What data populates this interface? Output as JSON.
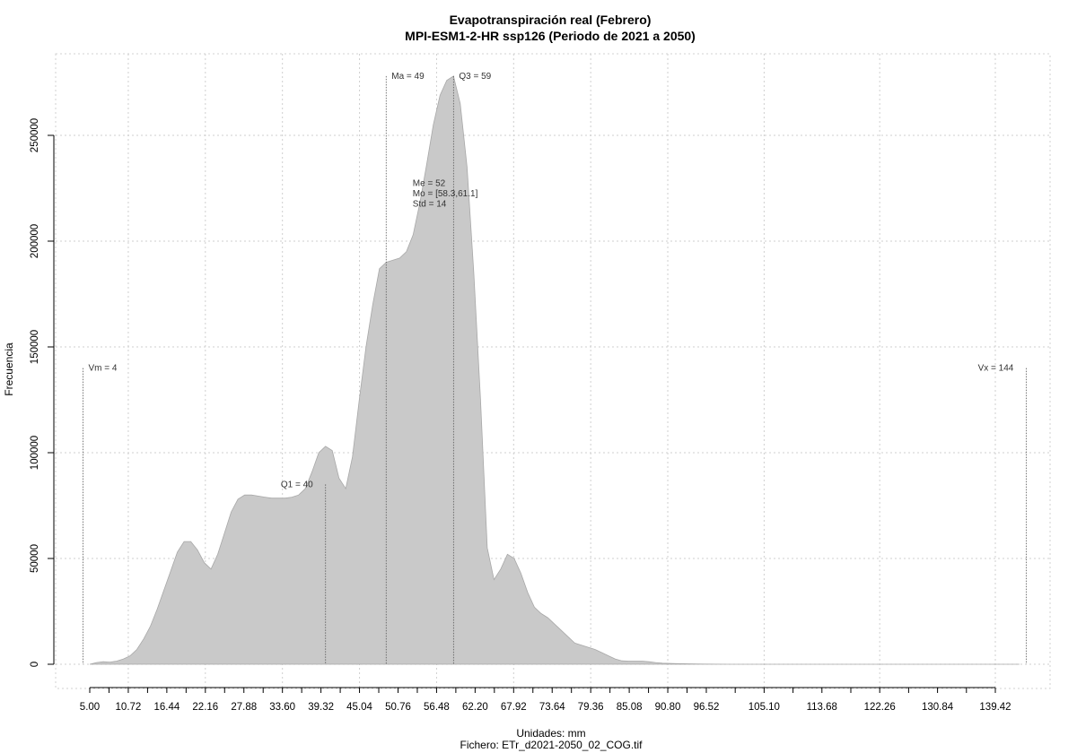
{
  "chart_data": {
    "type": "area",
    "title": "Evapotranspiración real (Febrero)",
    "subtitle": "MPI-ESM1-2-HR ssp126 (Periodo de 2021 a 2050)",
    "xlabel": "Unidades: mm",
    "caption": "Fichero: ETr_d2021-2050_02_COG.tif",
    "ylabel": "Frecuencia",
    "xlim": [
      0,
      145
    ],
    "ylim": [
      0,
      280000
    ],
    "grid": true,
    "x_ticks": [
      5.0,
      10.72,
      16.44,
      22.16,
      27.88,
      33.6,
      39.32,
      45.04,
      50.76,
      56.48,
      62.2,
      67.92,
      73.64,
      79.36,
      85.08,
      90.8,
      96.52,
      105.1,
      113.68,
      122.26,
      130.84,
      139.42
    ],
    "x_tick_labels": [
      "5.00",
      "10.72",
      "16.44",
      "22.16",
      "27.88",
      "33.60",
      "39.32",
      "45.04",
      "50.76",
      "56.48",
      "62.20",
      "67.92",
      "73.64",
      "79.36",
      "85.08",
      "90.80",
      "96.52",
      "105.10",
      "113.68",
      "122.26",
      "130.84",
      "139.42"
    ],
    "y_ticks": [
      0,
      50000,
      100000,
      150000,
      200000,
      250000
    ],
    "y_tick_labels": [
      "0",
      "50000",
      "100000",
      "150000",
      "200000",
      "250000"
    ],
    "series": [
      {
        "x": [
          5.0,
          6.0,
          7.0,
          8.0,
          9.0,
          10.0,
          11.0,
          12.0,
          13.0,
          14.0,
          15.0,
          16.0,
          17.0,
          18.0,
          19.0,
          20.0,
          21.0,
          22.0,
          23.0,
          24.0,
          25.0,
          26.0,
          27.0,
          28.0,
          29.0,
          30.0,
          31.0,
          32.0,
          33.0,
          34.0,
          35.0,
          36.0,
          37.0,
          38.0,
          39.0,
          40.0,
          41.0,
          42.0,
          43.0,
          44.0,
          45.0,
          46.0,
          47.0,
          48.0,
          49.0,
          50.0,
          51.0,
          52.0,
          53.0,
          54.0,
          55.0,
          56.0,
          57.0,
          58.0,
          59.0,
          60.0,
          61.0,
          62.0,
          63.0,
          64.0,
          65.0,
          66.0,
          67.0,
          68.0,
          69.0,
          70.0,
          71.0,
          72.0,
          73.0,
          74.0,
          75.0,
          76.0,
          77.0,
          78.0,
          79.0,
          80.0,
          81.0,
          82.0,
          83.0,
          84.0,
          85.0,
          86.0,
          87.0,
          88.0,
          89.0,
          90.0,
          92.0,
          94.0,
          96.0,
          98.0,
          100.0,
          105.0,
          110.0,
          120.0,
          130.0,
          140.0,
          143.0
        ],
        "y": [
          0,
          800,
          1200,
          1000,
          1500,
          2500,
          4000,
          7000,
          12000,
          18000,
          26000,
          35000,
          44000,
          53000,
          58000,
          58000,
          54000,
          48000,
          45000,
          52000,
          62000,
          72000,
          78000,
          80000,
          80000,
          79500,
          79000,
          78500,
          78500,
          78500,
          79000,
          80000,
          83000,
          91000,
          100000,
          103000,
          101000,
          88000,
          83000,
          98000,
          125000,
          150000,
          170000,
          187000,
          190000,
          191000,
          192000,
          195000,
          203000,
          218000,
          236000,
          255000,
          269000,
          276000,
          278000,
          265000,
          235000,
          185000,
          125000,
          55000,
          40000,
          45000,
          52000,
          50000,
          43000,
          34000,
          27000,
          24000,
          22000,
          19000,
          16000,
          13000,
          10000,
          9000,
          8000,
          7000,
          5500,
          4000,
          2500,
          1600,
          1500,
          1500,
          1500,
          1200,
          800,
          500,
          300,
          200,
          100,
          50,
          0,
          0,
          0,
          0,
          0,
          0,
          0
        ]
      }
    ],
    "annotations": [
      {
        "x": 4,
        "y": 140000,
        "label": "Vm = 4",
        "align": "right-of-line"
      },
      {
        "x": 40,
        "y": 85000,
        "label": "Q1 = 40",
        "align": "left-of-line"
      },
      {
        "x": 49,
        "y": 278000,
        "label": "Ma = 49",
        "align": "right-of-line"
      },
      {
        "x": 59,
        "y": 278000,
        "label": "Q3 = 59",
        "align": "right-of-line"
      },
      {
        "x": 144,
        "y": 140000,
        "label": "Vx = 144",
        "align": "left-of-line"
      }
    ],
    "stats_box": {
      "x": 52,
      "y": 226000,
      "lines": [
        "Me = 52",
        "Mo = [58.3,61.1]",
        "Std = 14"
      ]
    }
  }
}
